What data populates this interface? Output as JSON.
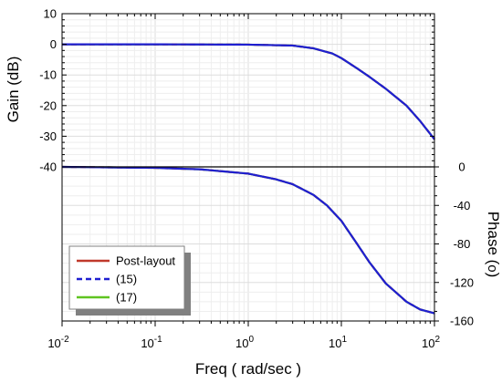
{
  "chart_data": {
    "type": "line",
    "x_scale": "log",
    "x_range": [
      0.01,
      100
    ],
    "x_ticks": [
      {
        "value": 0.01,
        "base": "10",
        "exp": "-2"
      },
      {
        "value": 0.1,
        "base": "10",
        "exp": "-1"
      },
      {
        "value": 1,
        "base": "10",
        "exp": "0"
      },
      {
        "value": 10,
        "base": "10",
        "exp": "1"
      },
      {
        "value": 100,
        "base": "10",
        "exp": "2"
      }
    ],
    "xlabel": "Freq ( rad/sec )",
    "grid": true,
    "legend_position": "bottom-left",
    "colors": {
      "Post-layout": "#c0392b",
      "(15)": "#1f1fd1",
      "(17)": "#5fc420"
    },
    "panels": [
      {
        "name": "gain",
        "ylabel": "Gain (dB)",
        "y_range": [
          -40,
          10
        ],
        "y_ticks": [
          10,
          0,
          -10,
          -20,
          -30,
          -40
        ],
        "series": [
          {
            "name": "Post-layout",
            "x": [
              0.01,
              0.1,
              1,
              3,
              5,
              8,
              10,
              15,
              20,
              30,
              50,
              70,
              100
            ],
            "y": [
              0,
              0,
              -0.1,
              -0.4,
              -1.3,
              -3,
              -4.5,
              -8,
              -10.6,
              -14.5,
              -20,
              -25,
              -31
            ]
          },
          {
            "name": "(15)",
            "x": [
              0.01,
              0.1,
              1,
              3,
              5,
              8,
              10,
              15,
              20,
              30,
              50,
              70,
              100
            ],
            "y": [
              0,
              0,
              -0.1,
              -0.4,
              -1.3,
              -3,
              -4.5,
              -8,
              -10.6,
              -14.5,
              -20,
              -25,
              -31
            ]
          },
          {
            "name": "(17)",
            "x": [
              0.01,
              0.1,
              1,
              3,
              5,
              8,
              10,
              15,
              20,
              30,
              50,
              70,
              100
            ],
            "y": [
              0,
              0,
              -0.1,
              -0.4,
              -1.3,
              -3,
              -4.5,
              -8,
              -10.6,
              -14.5,
              -20,
              -25,
              -31
            ]
          }
        ]
      },
      {
        "name": "phase",
        "ylabel": "Phase (o)",
        "y_range": [
          -160,
          0
        ],
        "y_ticks": [
          0,
          -40,
          -80,
          -120,
          -160
        ],
        "series": [
          {
            "name": "Post-layout",
            "x": [
              0.01,
              0.1,
              0.3,
              1,
              2,
              3,
              5,
              7,
              10,
              15,
              20,
              30,
              50,
              70,
              100
            ],
            "y": [
              0,
              -1,
              -2.5,
              -7,
              -13,
              -18,
              -29,
              -40,
              -56,
              -81,
              -99,
              -121,
              -140,
              -148,
              -152
            ]
          },
          {
            "name": "(15)",
            "x": [
              0.01,
              0.1,
              0.3,
              1,
              2,
              3,
              5,
              7,
              10,
              15,
              20,
              30,
              50,
              70,
              100
            ],
            "y": [
              0,
              -1,
              -2.5,
              -7,
              -13,
              -18,
              -29,
              -40,
              -56,
              -81,
              -99,
              -121,
              -140,
              -148,
              -152
            ]
          },
          {
            "name": "(17)",
            "x": [
              0.01,
              0.1,
              0.3,
              1,
              2,
              3,
              5,
              7,
              10,
              15,
              20,
              30,
              50,
              70,
              100
            ],
            "y": [
              0,
              -1,
              -2.5,
              -7,
              -13,
              -18,
              -29,
              -40,
              -56,
              -81,
              -99,
              -121,
              -140,
              -148,
              -152
            ]
          }
        ]
      }
    ],
    "legend": [
      "Post-layout",
      "(15)",
      "(17)"
    ]
  }
}
